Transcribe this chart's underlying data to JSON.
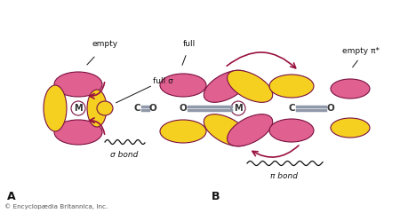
{
  "background": "#ffffff",
  "pink": "#e06090",
  "yellow": "#f5d020",
  "outline": "#7a1040",
  "gray_bond": "#9099aa",
  "text_color": "#111111",
  "arrow_color": "#991040",
  "label_A": "A",
  "label_B": "B",
  "text_empty": "empty",
  "text_full_sigma": "full σ",
  "text_sigma_bond": "σ bond",
  "text_full": "full",
  "text_empty_pi": "empty π*",
  "text_pi_bond": "π bond",
  "copyright": "© Encyclopædia Britannica, Inc."
}
